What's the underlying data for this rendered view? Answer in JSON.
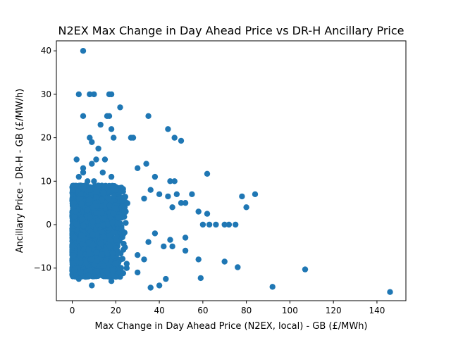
{
  "chart_data": {
    "type": "scatter",
    "title": "N2EX Max Change in Day Ahead Price vs DR-H Ancillary Price",
    "xlabel": "Max Change in Day Ahead Price (N2EX, local) - GB (£/MWh)",
    "ylabel": "Ancillary Price - DR-H - GB (£/MW/h)",
    "xlim": [
      -7.3,
      153.3
    ],
    "ylim": [
      -17.5,
      42.3
    ],
    "xticks": [
      0,
      20,
      40,
      60,
      80,
      100,
      120,
      140
    ],
    "yticks": [
      -10,
      0,
      10,
      20,
      30,
      40
    ],
    "grid": false,
    "marker_color": "#1f77b4",
    "x": [
      5,
      3,
      8,
      10,
      17,
      18,
      5,
      22,
      35,
      17,
      16,
      18,
      13,
      19,
      44,
      47,
      50,
      8,
      9,
      12,
      15,
      11,
      9,
      2,
      5,
      3,
      27,
      28,
      5,
      14,
      18,
      38,
      45,
      47,
      10,
      7,
      30,
      34,
      8,
      4,
      12,
      20,
      62,
      36,
      40,
      33,
      48,
      55,
      52,
      50,
      46,
      58,
      62,
      63,
      70,
      72,
      75,
      78,
      84,
      80,
      44,
      60,
      66,
      52,
      38,
      35,
      42,
      30,
      25,
      22,
      18,
      70,
      76,
      59,
      107,
      92,
      146,
      36,
      40,
      43,
      58,
      46,
      45,
      52,
      33,
      25,
      30,
      20,
      9,
      6,
      4,
      3,
      1,
      0,
      0.5,
      1,
      2,
      0.3,
      0.8,
      1.5
    ],
    "y": [
      40,
      30,
      30,
      30,
      30,
      30,
      25,
      27,
      25,
      25,
      25,
      22,
      23,
      20,
      22,
      20,
      19.3,
      20,
      19,
      17.5,
      15,
      15,
      14,
      15,
      12,
      11,
      20,
      20,
      13,
      12,
      11,
      11,
      10,
      10,
      10,
      10,
      13,
      14,
      8,
      7,
      9,
      8,
      11.7,
      8,
      7,
      6,
      7,
      7,
      5,
      5,
      4,
      3,
      2.5,
      0,
      0,
      0,
      0,
      6.5,
      7,
      4,
      6.5,
      0,
      0,
      -3,
      -2,
      -4,
      -5,
      -7,
      -9,
      -12,
      -13,
      -8.5,
      -9.8,
      -12.3,
      -10.3,
      -14.3,
      -15.5,
      -14.5,
      -14,
      -12.5,
      -8,
      -5,
      -3.5,
      -6,
      -8,
      -10,
      -11,
      -12,
      -14,
      -12,
      -11,
      -12.5,
      -10.5,
      -5,
      -7,
      -3,
      0,
      8,
      5,
      3
    ]
  }
}
